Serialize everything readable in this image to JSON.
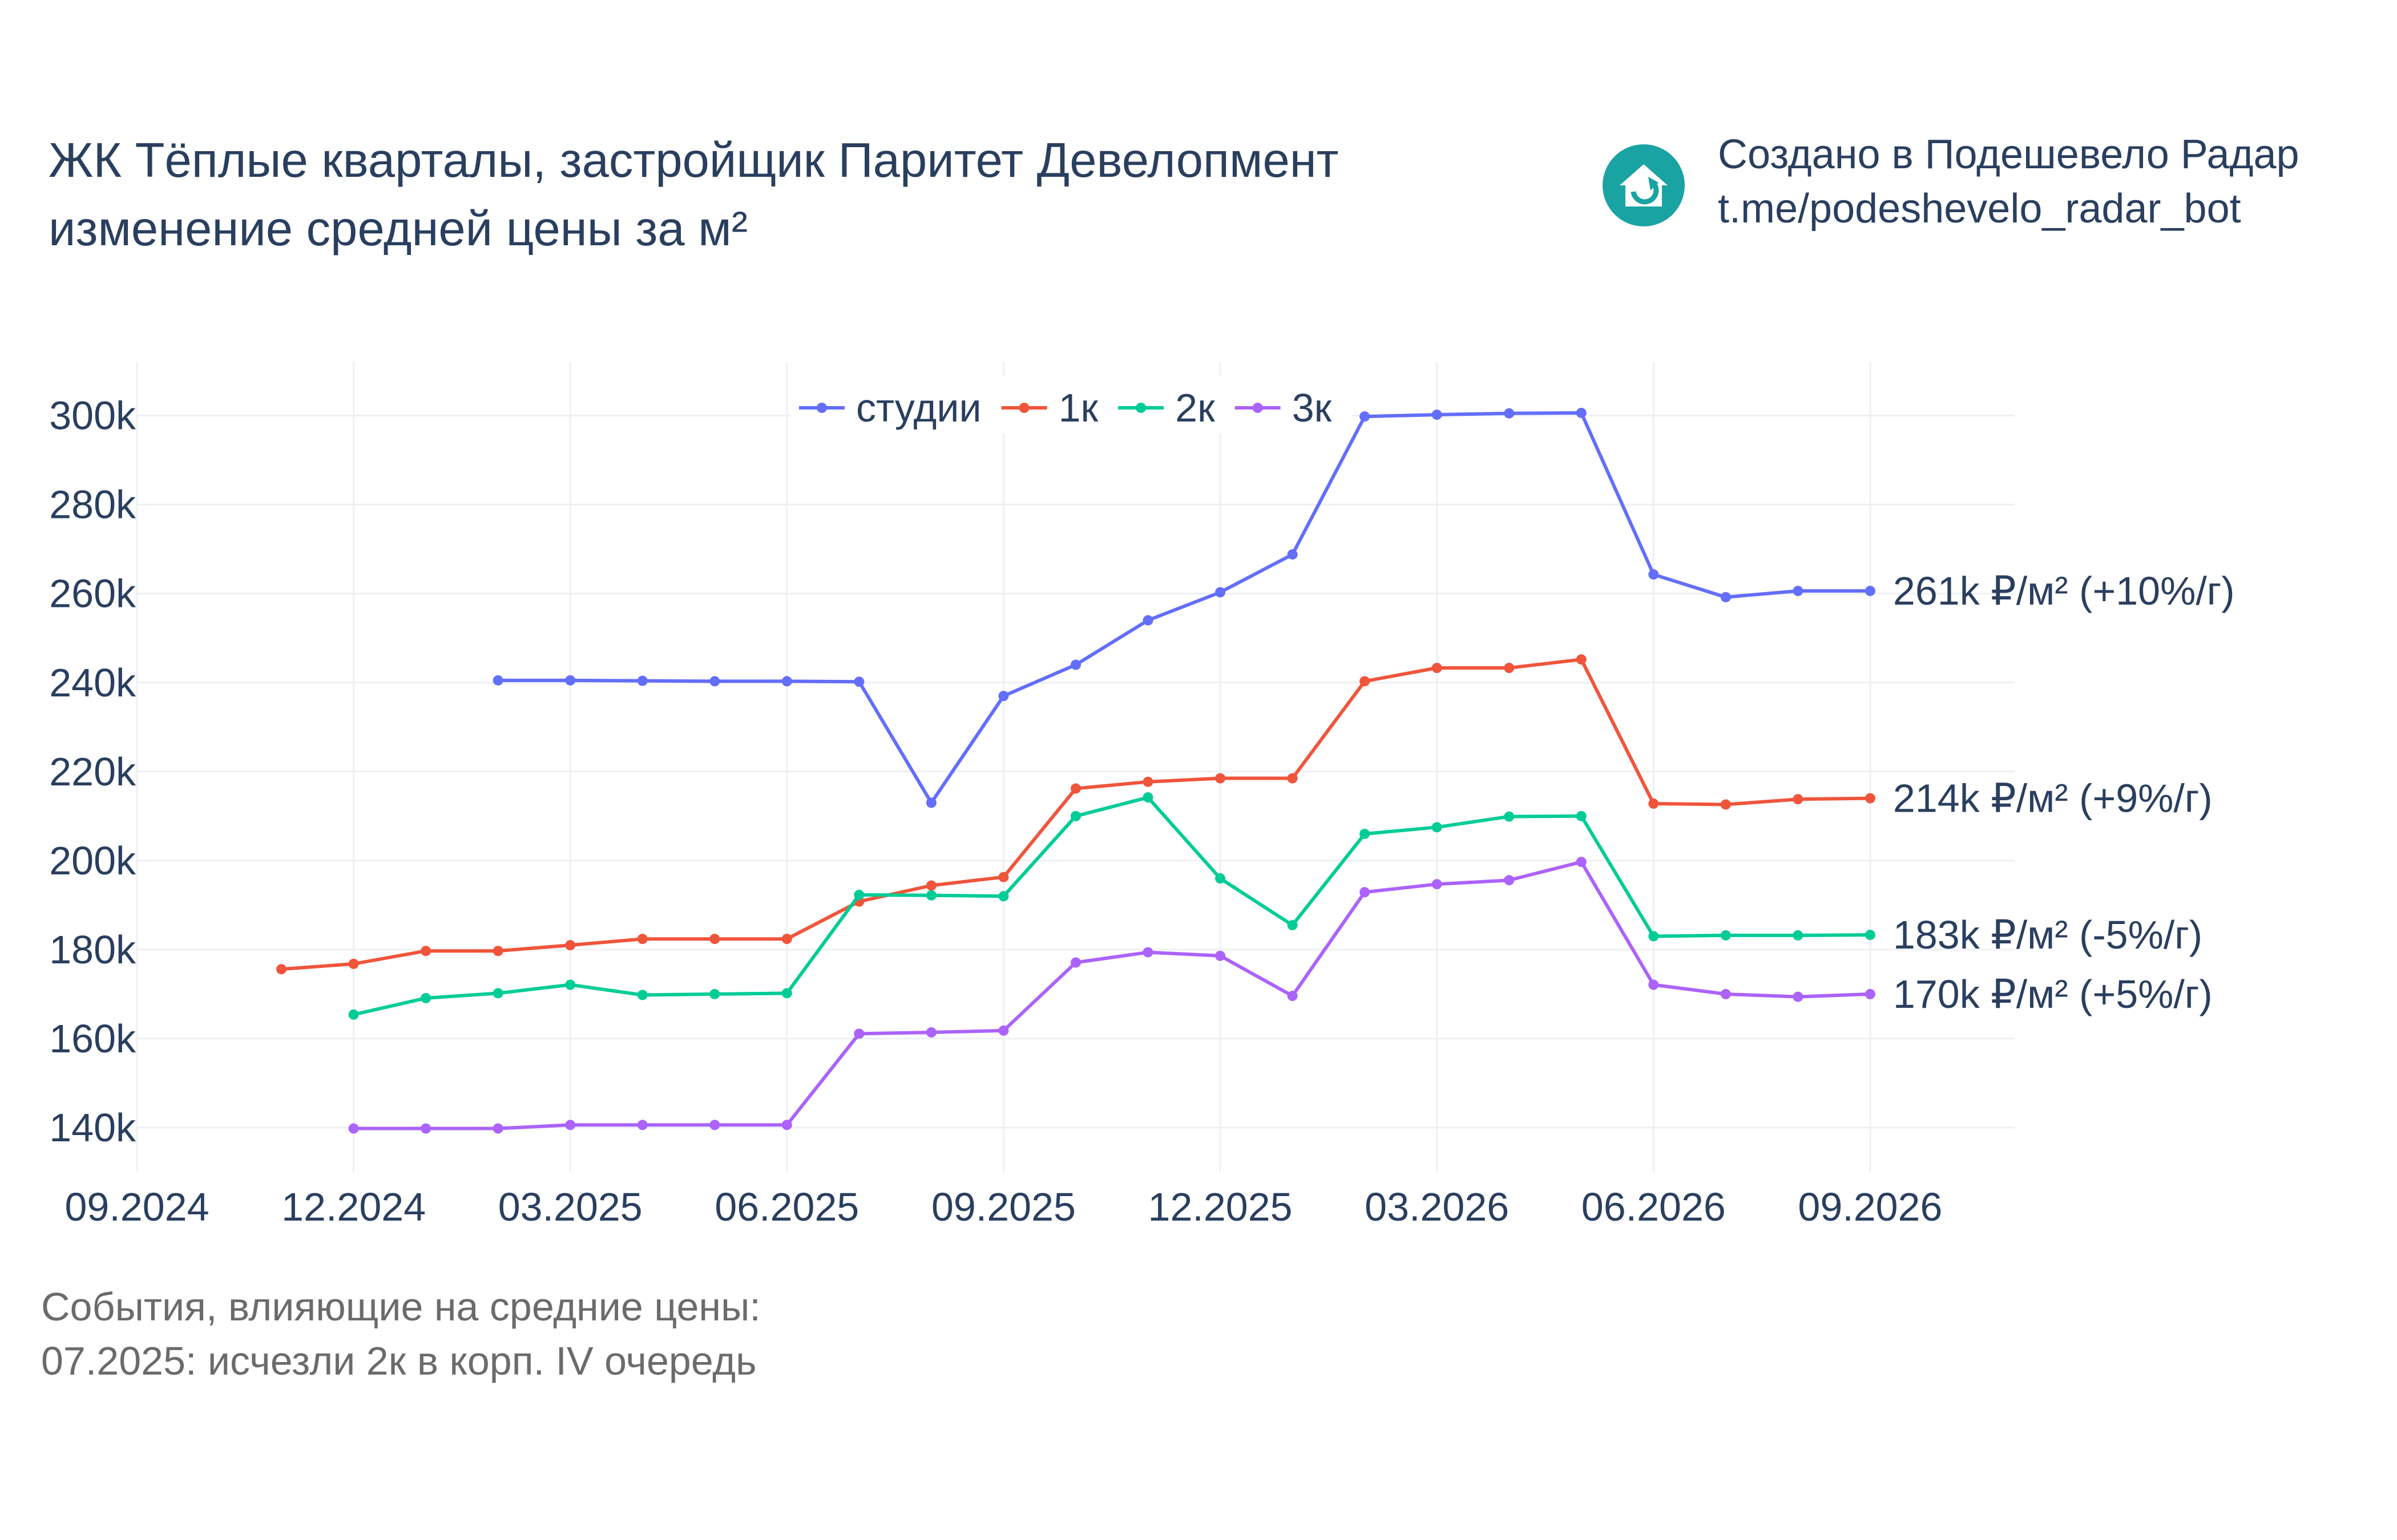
{
  "header": {
    "title_line1": "ЖК Тёплые кварталы, застройщик Паритет Девелопмент",
    "title_line2": "изменение средней цены за м²"
  },
  "brand": {
    "line1": "Создано в Подешевело Радар",
    "line2": "t.me/podeshevelo_radar_bot",
    "logo_icon": "house-refresh-icon",
    "logo_color": "#1aa3a3"
  },
  "events": {
    "heading": "События, влияющие на средние цены:",
    "items": [
      "07.2025: исчезли 2к в корп. IV очередь"
    ]
  },
  "chart_data": {
    "type": "line",
    "x_ticks": [
      "09.2024",
      "12.2024",
      "03.2025",
      "06.2025",
      "09.2025",
      "12.2025",
      "03.2026",
      "06.2026",
      "09.2026"
    ],
    "y_ticks": [
      "140k",
      "160k",
      "180k",
      "200k",
      "220k",
      "240k",
      "260k",
      "280k",
      "300k"
    ],
    "y_tick_values": [
      140000,
      160000,
      180000,
      200000,
      220000,
      240000,
      260000,
      280000,
      300000
    ],
    "ylim": [
      130000,
      312000
    ],
    "xlim": [
      "2024-09",
      "2026-11"
    ],
    "grid": true,
    "legend_position": "top-center",
    "x": [
      "2024-11",
      "2024-12",
      "2025-01",
      "2025-02",
      "2025-03",
      "2025-04",
      "2025-05",
      "2025-06",
      "2025-07",
      "2025-08",
      "2025-09",
      "2025-10",
      "2025-11",
      "2025-12",
      "2026-01",
      "2026-02",
      "2026-03",
      "2026-04",
      "2026-05",
      "2026-06",
      "2026-07",
      "2026-08",
      "2026-09"
    ],
    "series": [
      {
        "name": "студии",
        "color": "#636efa",
        "end_label": "261k ₽/м² (+10%/г)",
        "values": [
          null,
          null,
          null,
          240500,
          240500,
          240400,
          240300,
          240300,
          240200,
          213000,
          237000,
          244000,
          254000,
          260300,
          268800,
          299800,
          300200,
          300500,
          300600,
          264300,
          259200,
          260600,
          260600
        ]
      },
      {
        "name": "1к",
        "color": "#ef553b",
        "end_label": "214k ₽/м² (+9%/г)",
        "values": [
          175600,
          176800,
          179700,
          179700,
          181000,
          182400,
          182400,
          182400,
          190800,
          194400,
          196300,
          216200,
          217700,
          218500,
          218500,
          240300,
          243300,
          243300,
          245200,
          212800,
          212600,
          213800,
          214000
        ]
      },
      {
        "name": "2к",
        "color": "#00cc96",
        "end_label": "183k ₽/м² (-5%/г)",
        "values": [
          null,
          165400,
          169100,
          170200,
          172100,
          169800,
          170000,
          170200,
          192300,
          192200,
          192000,
          210000,
          214200,
          196000,
          185500,
          206000,
          207500,
          209900,
          210000,
          183000,
          183200,
          183200,
          183300
        ]
      },
      {
        "name": "3к",
        "color": "#ab63fa",
        "end_label": "170k ₽/м² (+5%/г)",
        "values": [
          null,
          139800,
          139800,
          139800,
          140600,
          140600,
          140600,
          140600,
          161100,
          161400,
          161800,
          177100,
          179400,
          178600,
          169600,
          192900,
          194700,
          195600,
          199700,
          172100,
          170000,
          169400,
          170000
        ]
      }
    ]
  }
}
